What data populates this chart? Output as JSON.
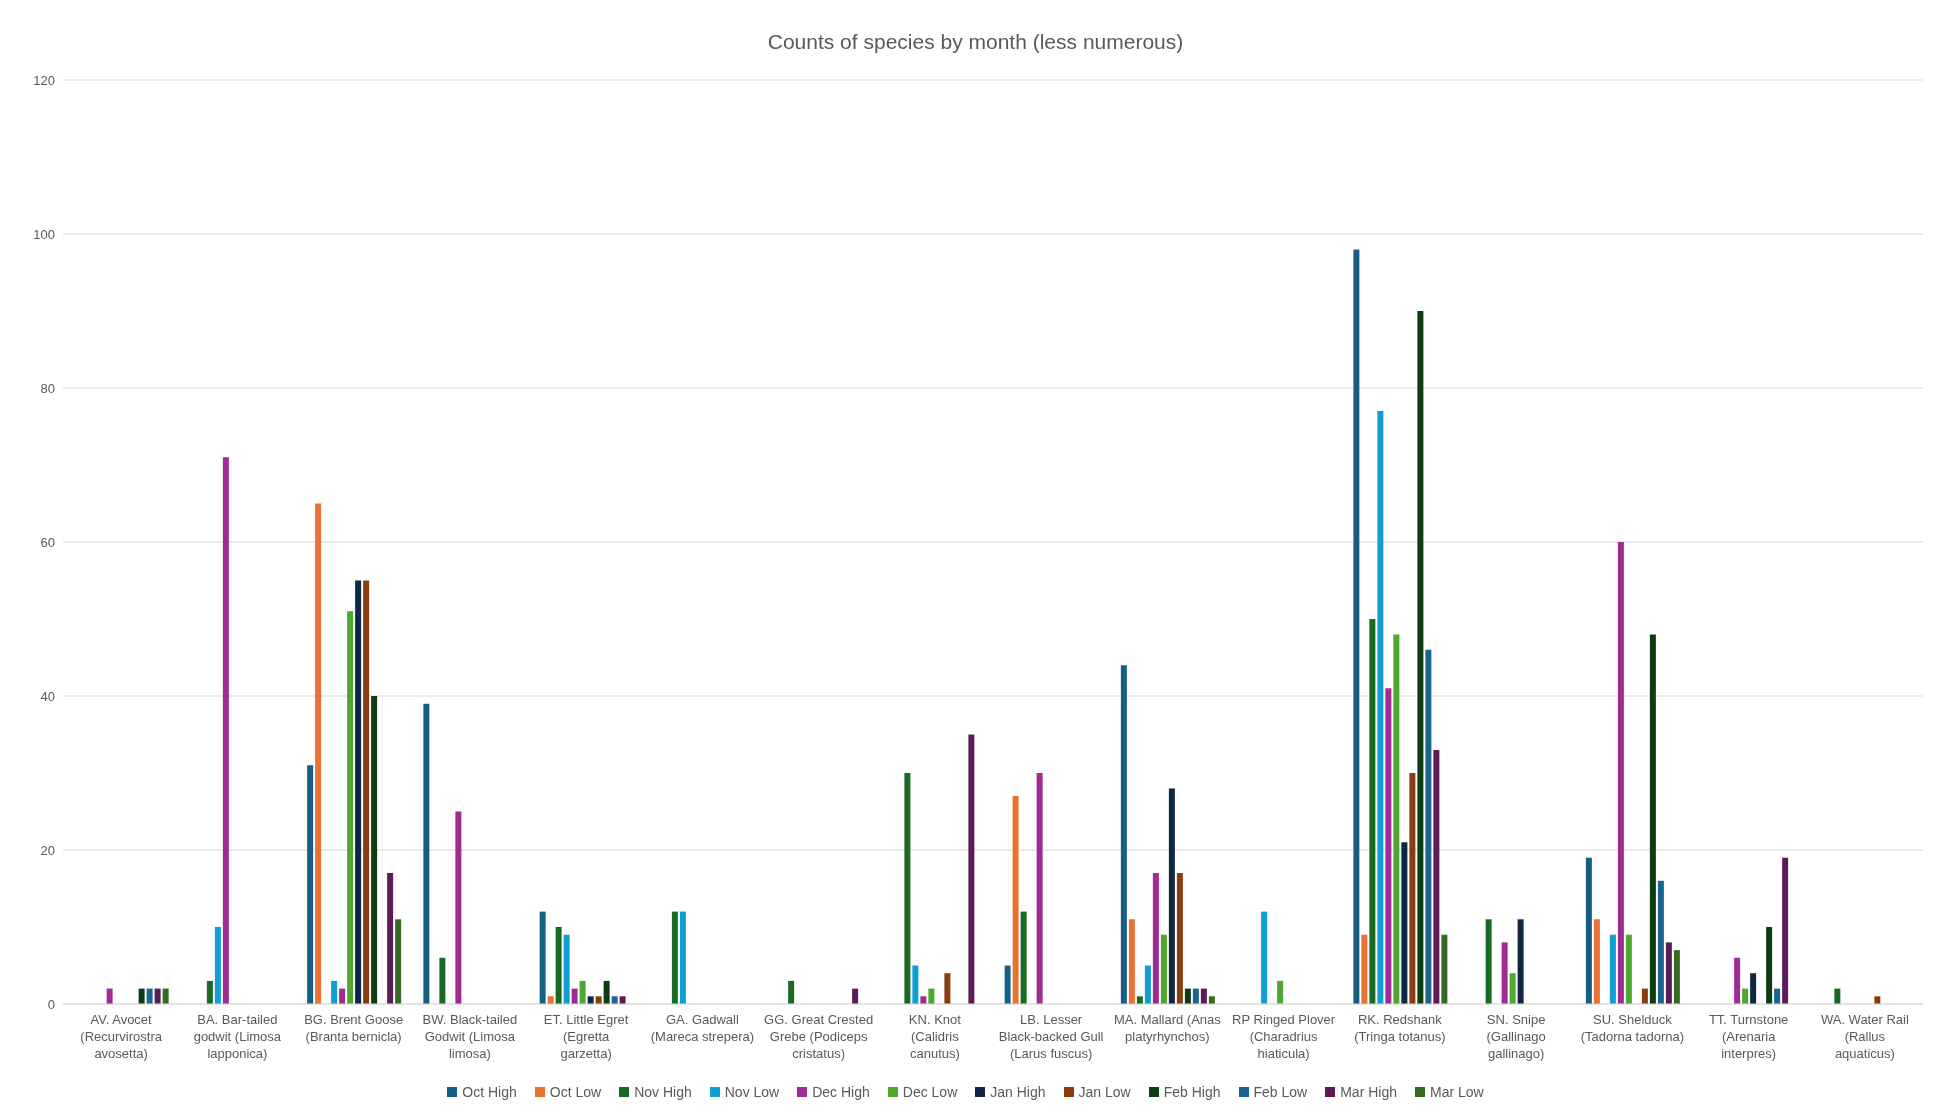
{
  "chart_data": {
    "type": "bar",
    "title": "Counts of species by month (less numerous)",
    "categories": [
      "AV. Avocet (Recurvirostra avosetta)",
      "BA. Bar-tailed godwit (Limosa lapponica)",
      "BG. Brent Goose (Branta bernicla)",
      "BW. Black-tailed Godwit (Limosa limosa)",
      "ET. Little Egret (Egretta garzetta)",
      "GA. Gadwall (Mareca strepera)",
      "GG. Great Crested Grebe (Podiceps cristatus)",
      "KN. Knot (Calidris canutus)",
      "LB. Lesser Black-backed Gull (Larus fuscus)",
      "MA. Mallard (Anas platyrhynchos)",
      "RP Ringed Plover (Charadrius hiaticula)",
      "RK. Redshank (Tringa totanus)",
      "SN. Snipe (Gallinago gallinago)",
      "SU. Shelduck (Tadorna tadorna)",
      "TT. Turnstone (Arenaria interpres)",
      "WA. Water Rail (Rallus aquaticus)"
    ],
    "series": [
      {
        "name": "Oct High",
        "color": "#156082",
        "values": [
          null,
          null,
          31,
          39,
          12,
          null,
          null,
          null,
          5,
          44,
          null,
          98,
          null,
          19,
          null,
          null
        ]
      },
      {
        "name": "Oct Low",
        "color": "#e97132",
        "values": [
          null,
          null,
          65,
          null,
          1,
          null,
          null,
          null,
          27,
          11,
          null,
          9,
          null,
          11,
          null,
          null
        ]
      },
      {
        "name": "Nov High",
        "color": "#196b24",
        "values": [
          null,
          3,
          null,
          6,
          10,
          12,
          3,
          30,
          12,
          1,
          null,
          50,
          11,
          null,
          null,
          2
        ]
      },
      {
        "name": "Nov Low",
        "color": "#0f9ed5",
        "values": [
          null,
          10,
          3,
          null,
          9,
          12,
          null,
          5,
          null,
          5,
          12,
          77,
          null,
          9,
          null,
          null
        ]
      },
      {
        "name": "Dec High",
        "color": "#a02b93",
        "values": [
          2,
          71,
          2,
          25,
          2,
          null,
          null,
          1,
          30,
          17,
          null,
          41,
          8,
          60,
          6,
          null
        ]
      },
      {
        "name": "Dec Low",
        "color": "#4ea72e",
        "values": [
          null,
          null,
          51,
          null,
          3,
          null,
          null,
          2,
          null,
          9,
          3,
          48,
          4,
          9,
          2,
          null
        ]
      },
      {
        "name": "Jan High",
        "color": "#0e2841",
        "values": [
          null,
          null,
          55,
          null,
          1,
          null,
          null,
          null,
          null,
          28,
          null,
          21,
          11,
          null,
          4,
          null
        ]
      },
      {
        "name": "Jan Low",
        "color": "#8b3c0f",
        "values": [
          null,
          null,
          55,
          null,
          1,
          null,
          null,
          4,
          null,
          17,
          null,
          30,
          null,
          2,
          null,
          1
        ]
      },
      {
        "name": "Feb High",
        "color": "#0f3d13",
        "values": [
          2,
          null,
          40,
          null,
          3,
          null,
          null,
          null,
          null,
          2,
          null,
          90,
          null,
          48,
          10,
          null
        ]
      },
      {
        "name": "Feb Low",
        "color": "#1b6690",
        "values": [
          2,
          null,
          null,
          null,
          1,
          null,
          null,
          null,
          null,
          2,
          null,
          46,
          null,
          16,
          2,
          null
        ]
      },
      {
        "name": "Mar High",
        "color": "#5c1a57",
        "values": [
          2,
          null,
          17,
          null,
          1,
          null,
          2,
          35,
          null,
          2,
          null,
          33,
          null,
          8,
          19,
          null
        ]
      },
      {
        "name": "Mar Low",
        "color": "#336b22",
        "values": [
          2,
          null,
          11,
          null,
          null,
          null,
          null,
          null,
          null,
          1,
          null,
          9,
          null,
          7,
          null,
          null
        ]
      }
    ],
    "ylim": [
      0,
      120
    ],
    "yticks": [
      0,
      20,
      40,
      60,
      80,
      100,
      120
    ],
    "grid": "y",
    "legend": "bottom"
  }
}
